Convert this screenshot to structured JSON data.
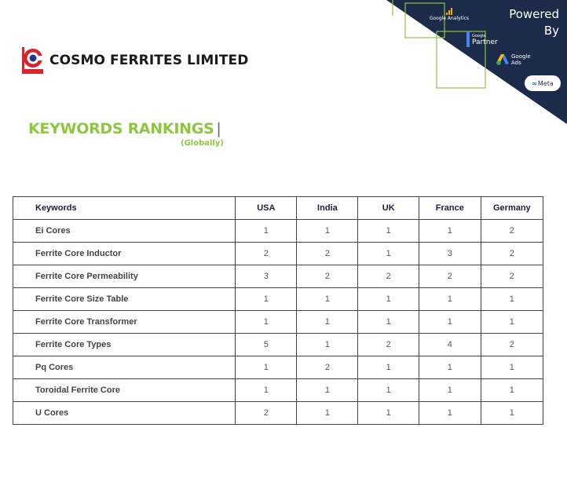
{
  "header": {
    "company_name": "COSMO FERRITES LIMITED",
    "logo_icon": "cosmo-ferrites-logo",
    "brand_colors": {
      "red": "#d9232d",
      "blue": "#1f3a8a"
    }
  },
  "powered_by": {
    "label_line1": "Powered",
    "label_line2": "By",
    "google_analytics": "Google Analytics",
    "google_partner_small": "Google",
    "google_partner": "Partner",
    "google_ads_line1": "Google",
    "google_ads_line2": "Ads",
    "meta": "Meta",
    "panel_color": "#1c2b4a",
    "accent_color": "#8dc63f"
  },
  "section": {
    "title": "KEYWORDS RANKINGS",
    "separator": "|",
    "subtitle": "(Globally)",
    "title_color": "#8dc63f"
  },
  "table": {
    "headers": [
      "Keywords",
      "USA",
      "India",
      "UK",
      "France",
      "Germany"
    ],
    "rows": [
      {
        "keyword": "Ei Cores",
        "values": [
          "1",
          "1",
          "1",
          "1",
          "2"
        ]
      },
      {
        "keyword": "Ferrite Core Inductor",
        "values": [
          "2",
          "2",
          "1",
          "3",
          "2"
        ]
      },
      {
        "keyword": "Ferrite Core Permeability",
        "values": [
          "3",
          "2",
          "2",
          "2",
          "2"
        ]
      },
      {
        "keyword": "Ferrite Core Size Table",
        "values": [
          "1",
          "1",
          "1",
          "1",
          "1"
        ]
      },
      {
        "keyword": "Ferrite Core Transformer",
        "values": [
          "1",
          "1",
          "1",
          "1",
          "1"
        ]
      },
      {
        "keyword": "Ferrite Core Types",
        "values": [
          "5",
          "1",
          "2",
          "4",
          "2"
        ]
      },
      {
        "keyword": "Pq Cores",
        "values": [
          "1",
          "2",
          "1",
          "1",
          "1"
        ]
      },
      {
        "keyword": "Toroidal Ferrite Core",
        "values": [
          "1",
          "1",
          "1",
          "1",
          "1"
        ]
      },
      {
        "keyword": "U Cores",
        "values": [
          "2",
          "1",
          "1",
          "1",
          "1"
        ]
      }
    ]
  }
}
